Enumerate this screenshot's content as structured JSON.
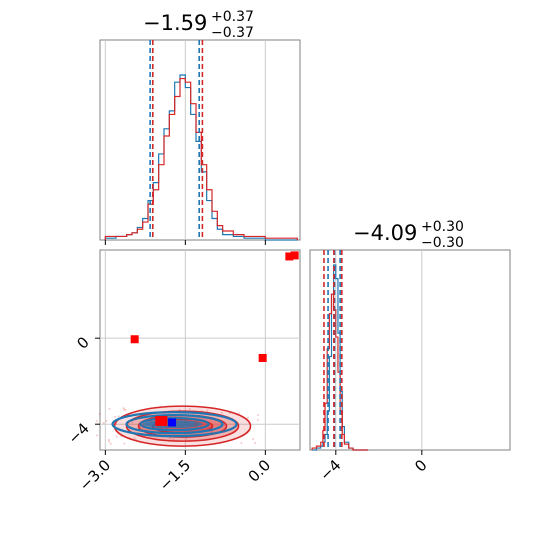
{
  "chart_data": {
    "type": "corner",
    "colors": {
      "series_a": "#1f77b4",
      "series_b": "#d62728",
      "marker_blue": "#0000ff",
      "marker_red": "#ff0000",
      "grid": "#cccccc",
      "frame": "#808080"
    },
    "axes_ranges": {
      "param1": [
        -3.1,
        0.65
      ],
      "param2": [
        -5.2,
        4.1
      ]
    },
    "param1": {
      "title": {
        "value": "−1.59",
        "plus": "+0.37",
        "minus": "−0.37"
      },
      "ticks": [
        {
          "value": -3.0,
          "label": "−3.0"
        },
        {
          "value": -1.5,
          "label": "−1.5"
        },
        {
          "value": 0.0,
          "label": "0.0"
        }
      ],
      "series_a": {
        "quantiles": [
          -2.16,
          -1.59,
          -1.24
        ]
      },
      "series_b": {
        "quantiles": [
          -2.11,
          -1.59,
          -1.18
        ]
      },
      "histogram_bins": [
        -3.0,
        -2.8,
        -2.6,
        -2.5,
        -2.4,
        -2.3,
        -2.2,
        -2.1,
        -2.0,
        -1.9,
        -1.8,
        -1.7,
        -1.6,
        -1.5,
        -1.4,
        -1.3,
        -1.2,
        -1.1,
        -1.0,
        -0.9,
        -0.8,
        -0.6,
        -0.4,
        0.0,
        0.6
      ],
      "series_a_counts": [
        1,
        2,
        3,
        4,
        7,
        12,
        22,
        32,
        48,
        62,
        72,
        88,
        92,
        85,
        70,
        55,
        38,
        22,
        12,
        6,
        3,
        2,
        1,
        0
      ],
      "series_b_counts": [
        2,
        2,
        3,
        4,
        6,
        10,
        20,
        28,
        42,
        58,
        70,
        80,
        90,
        88,
        76,
        60,
        42,
        28,
        16,
        8,
        5,
        3,
        2,
        1
      ]
    },
    "param2": {
      "title": {
        "value": "−4.09",
        "plus": "+0.30",
        "minus": "−0.30"
      },
      "ticks": [
        {
          "value": -4,
          "label": "−4"
        },
        {
          "value": 0,
          "label": "0"
        }
      ],
      "series_a": {
        "quantiles": [
          -4.36,
          -4.06,
          -3.8
        ]
      },
      "series_b": {
        "quantiles": [
          -4.55,
          -4.09,
          -3.72
        ]
      },
      "histogram_bins": [
        -5.1,
        -4.9,
        -4.7,
        -4.6,
        -4.5,
        -4.4,
        -4.3,
        -4.2,
        -4.1,
        -4.0,
        -3.9,
        -3.8,
        -3.7,
        -3.6,
        -3.4,
        -3.2,
        -2.5
      ],
      "series_a_counts": [
        0,
        1,
        2,
        4,
        8,
        20,
        48,
        80,
        95,
        88,
        60,
        30,
        12,
        4,
        1,
        0
      ],
      "series_b_counts": [
        1,
        2,
        4,
        10,
        24,
        52,
        70,
        80,
        72,
        58,
        40,
        20,
        8,
        3,
        1,
        0
      ]
    },
    "joint": {
      "markers_red": [
        [
          -2.45,
          -0.05
        ],
        [
          -0.05,
          -0.92
        ],
        [
          0.45,
          3.8
        ],
        [
          0.55,
          3.85
        ]
      ],
      "marker_blue": [
        -1.75,
        -3.92
      ],
      "markers_red_center": [
        -1.95,
        -3.85
      ]
    }
  }
}
